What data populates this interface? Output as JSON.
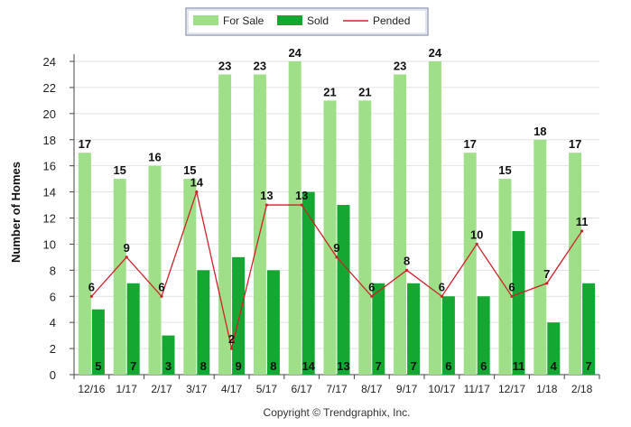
{
  "chart_data": {
    "type": "bar",
    "ylabel": "Number of Homes",
    "ylim": [
      0,
      24
    ],
    "yticks": [
      0,
      2,
      4,
      6,
      8,
      10,
      12,
      14,
      16,
      18,
      20,
      22,
      24
    ],
    "categories": [
      "12/16",
      "1/17",
      "2/17",
      "3/17",
      "4/17",
      "5/17",
      "6/17",
      "7/17",
      "8/17",
      "9/17",
      "10/17",
      "11/17",
      "12/17",
      "1/18",
      "2/18"
    ],
    "series": [
      {
        "name": "For Sale",
        "kind": "bar",
        "color": "#9fdf88",
        "values": [
          17,
          15,
          16,
          15,
          23,
          23,
          24,
          21,
          21,
          23,
          24,
          17,
          15,
          18,
          17
        ]
      },
      {
        "name": "Sold",
        "kind": "bar",
        "color": "#14a832",
        "values": [
          5,
          7,
          3,
          8,
          9,
          8,
          14,
          13,
          7,
          7,
          6,
          6,
          11,
          4,
          7
        ]
      },
      {
        "name": "Pended",
        "kind": "line",
        "color": "#d0202a",
        "values": [
          6,
          9,
          6,
          14,
          2,
          13,
          13,
          9,
          6,
          8,
          6,
          10,
          6,
          7,
          11
        ]
      }
    ],
    "legend_position": "top-center",
    "grid": true,
    "copyright": "Copyright © Trendgraphix, Inc."
  }
}
